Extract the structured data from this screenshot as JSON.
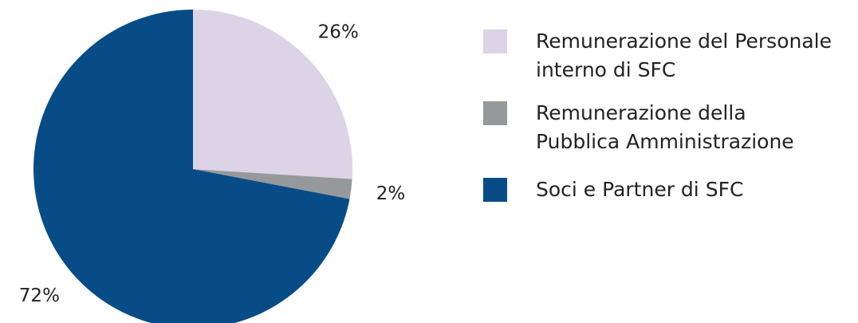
{
  "chart_data": {
    "type": "pie",
    "categories": [
      "Remunerazione del Personale\ninterno di SFC",
      "Remunerazione della\nPubblica Amministrazione",
      "Soci e Partner di SFC"
    ],
    "values": [
      26,
      2,
      72
    ],
    "value_labels": [
      "26%",
      "2%",
      "72%"
    ],
    "colors": [
      "#dcd3e6",
      "#96999b",
      "#084c87"
    ],
    "legend": "right"
  }
}
